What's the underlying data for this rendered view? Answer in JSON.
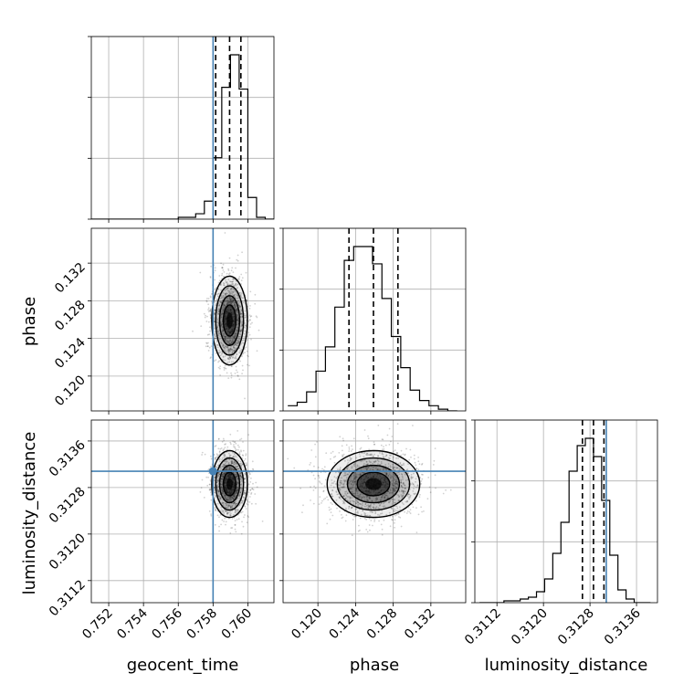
{
  "chart_data": {
    "type": "corner",
    "parameters": [
      "geocent_time",
      "phase",
      "luminosity_distance"
    ],
    "labels": {
      "geocent_time": "geocent_time",
      "phase": "phase",
      "luminosity_distance": "luminosity_distance"
    },
    "ranges": {
      "geocent_time": [
        0.751,
        0.7615
      ],
      "phase": [
        0.1163,
        0.1357
      ],
      "luminosity_distance": [
        0.31082,
        0.31396
      ]
    },
    "ticks": {
      "geocent_time": [
        "0.752",
        "0.754",
        "0.756",
        "0.758",
        "0.760"
      ],
      "phase": [
        "0.120",
        "0.124",
        "0.128",
        "0.132"
      ],
      "luminosity_distance": [
        "0.3112",
        "0.3120",
        "0.3128",
        "0.3136"
      ]
    },
    "truths": {
      "geocent_time": 0.758,
      "phase": null,
      "luminosity_distance": 0.31308
    },
    "quantiles": {
      "geocent_time": [
        0.75815,
        0.75895,
        0.7596
      ],
      "phase": [
        0.1233,
        0.1259,
        0.1285
      ],
      "luminosity_distance": [
        0.31267,
        0.31286,
        0.31304
      ]
    },
    "histograms": {
      "geocent_time": {
        "edges": [
          0.751,
          0.7515,
          0.752,
          0.7525,
          0.753,
          0.7535,
          0.754,
          0.7545,
          0.755,
          0.7555,
          0.756,
          0.7565,
          0.757,
          0.7575,
          0.758,
          0.7585,
          0.759,
          0.7595,
          0.76,
          0.7605,
          0.761,
          0.7615
        ],
        "counts": [
          0,
          0,
          0,
          0,
          0,
          0,
          0,
          0,
          0,
          0,
          1,
          1,
          3,
          10,
          34,
          73,
          91,
          72,
          12,
          1,
          0
        ]
      },
      "phase": {
        "edges": [
          0.1168,
          0.1178,
          0.1188,
          0.1198,
          0.1208,
          0.1218,
          0.1228,
          0.1238,
          0.1248,
          0.1258,
          0.1268,
          0.1278,
          0.1288,
          0.1298,
          0.1308,
          0.1318,
          0.1328,
          0.1338,
          0.1348
        ],
        "counts": [
          3,
          5,
          11,
          23,
          37,
          60,
          87,
          95,
          95,
          85,
          65,
          43,
          25,
          12,
          6,
          3,
          1,
          0
        ]
      },
      "luminosity_distance": {
        "edges": [
          0.3109,
          0.31104,
          0.31118,
          0.31132,
          0.31146,
          0.3116,
          0.31174,
          0.31188,
          0.31202,
          0.31216,
          0.3123,
          0.31244,
          0.31258,
          0.31272,
          0.31286,
          0.313,
          0.31314,
          0.31328,
          0.31342,
          0.31356,
          0.3137,
          0.31384
        ],
        "counts": [
          0,
          0,
          0,
          1,
          1,
          2,
          3,
          6,
          13,
          27,
          44,
          72,
          86,
          90,
          80,
          56,
          26,
          7,
          2,
          0,
          0
        ]
      }
    },
    "joint": {
      "phase_vs_geocent_time": {
        "center": [
          0.75895,
          0.1259
        ],
        "sigma": [
          0.0005,
          0.0023
        ]
      },
      "luminosity_distance_vs_geocent_time": {
        "center": [
          0.75895,
          0.31286
        ],
        "sigma": [
          0.0005,
          0.00028
        ]
      },
      "luminosity_distance_vs_phase": {
        "center": [
          0.1259,
          0.31286
        ],
        "sigma": [
          0.0024,
          0.00028
        ]
      }
    },
    "grid": true
  }
}
